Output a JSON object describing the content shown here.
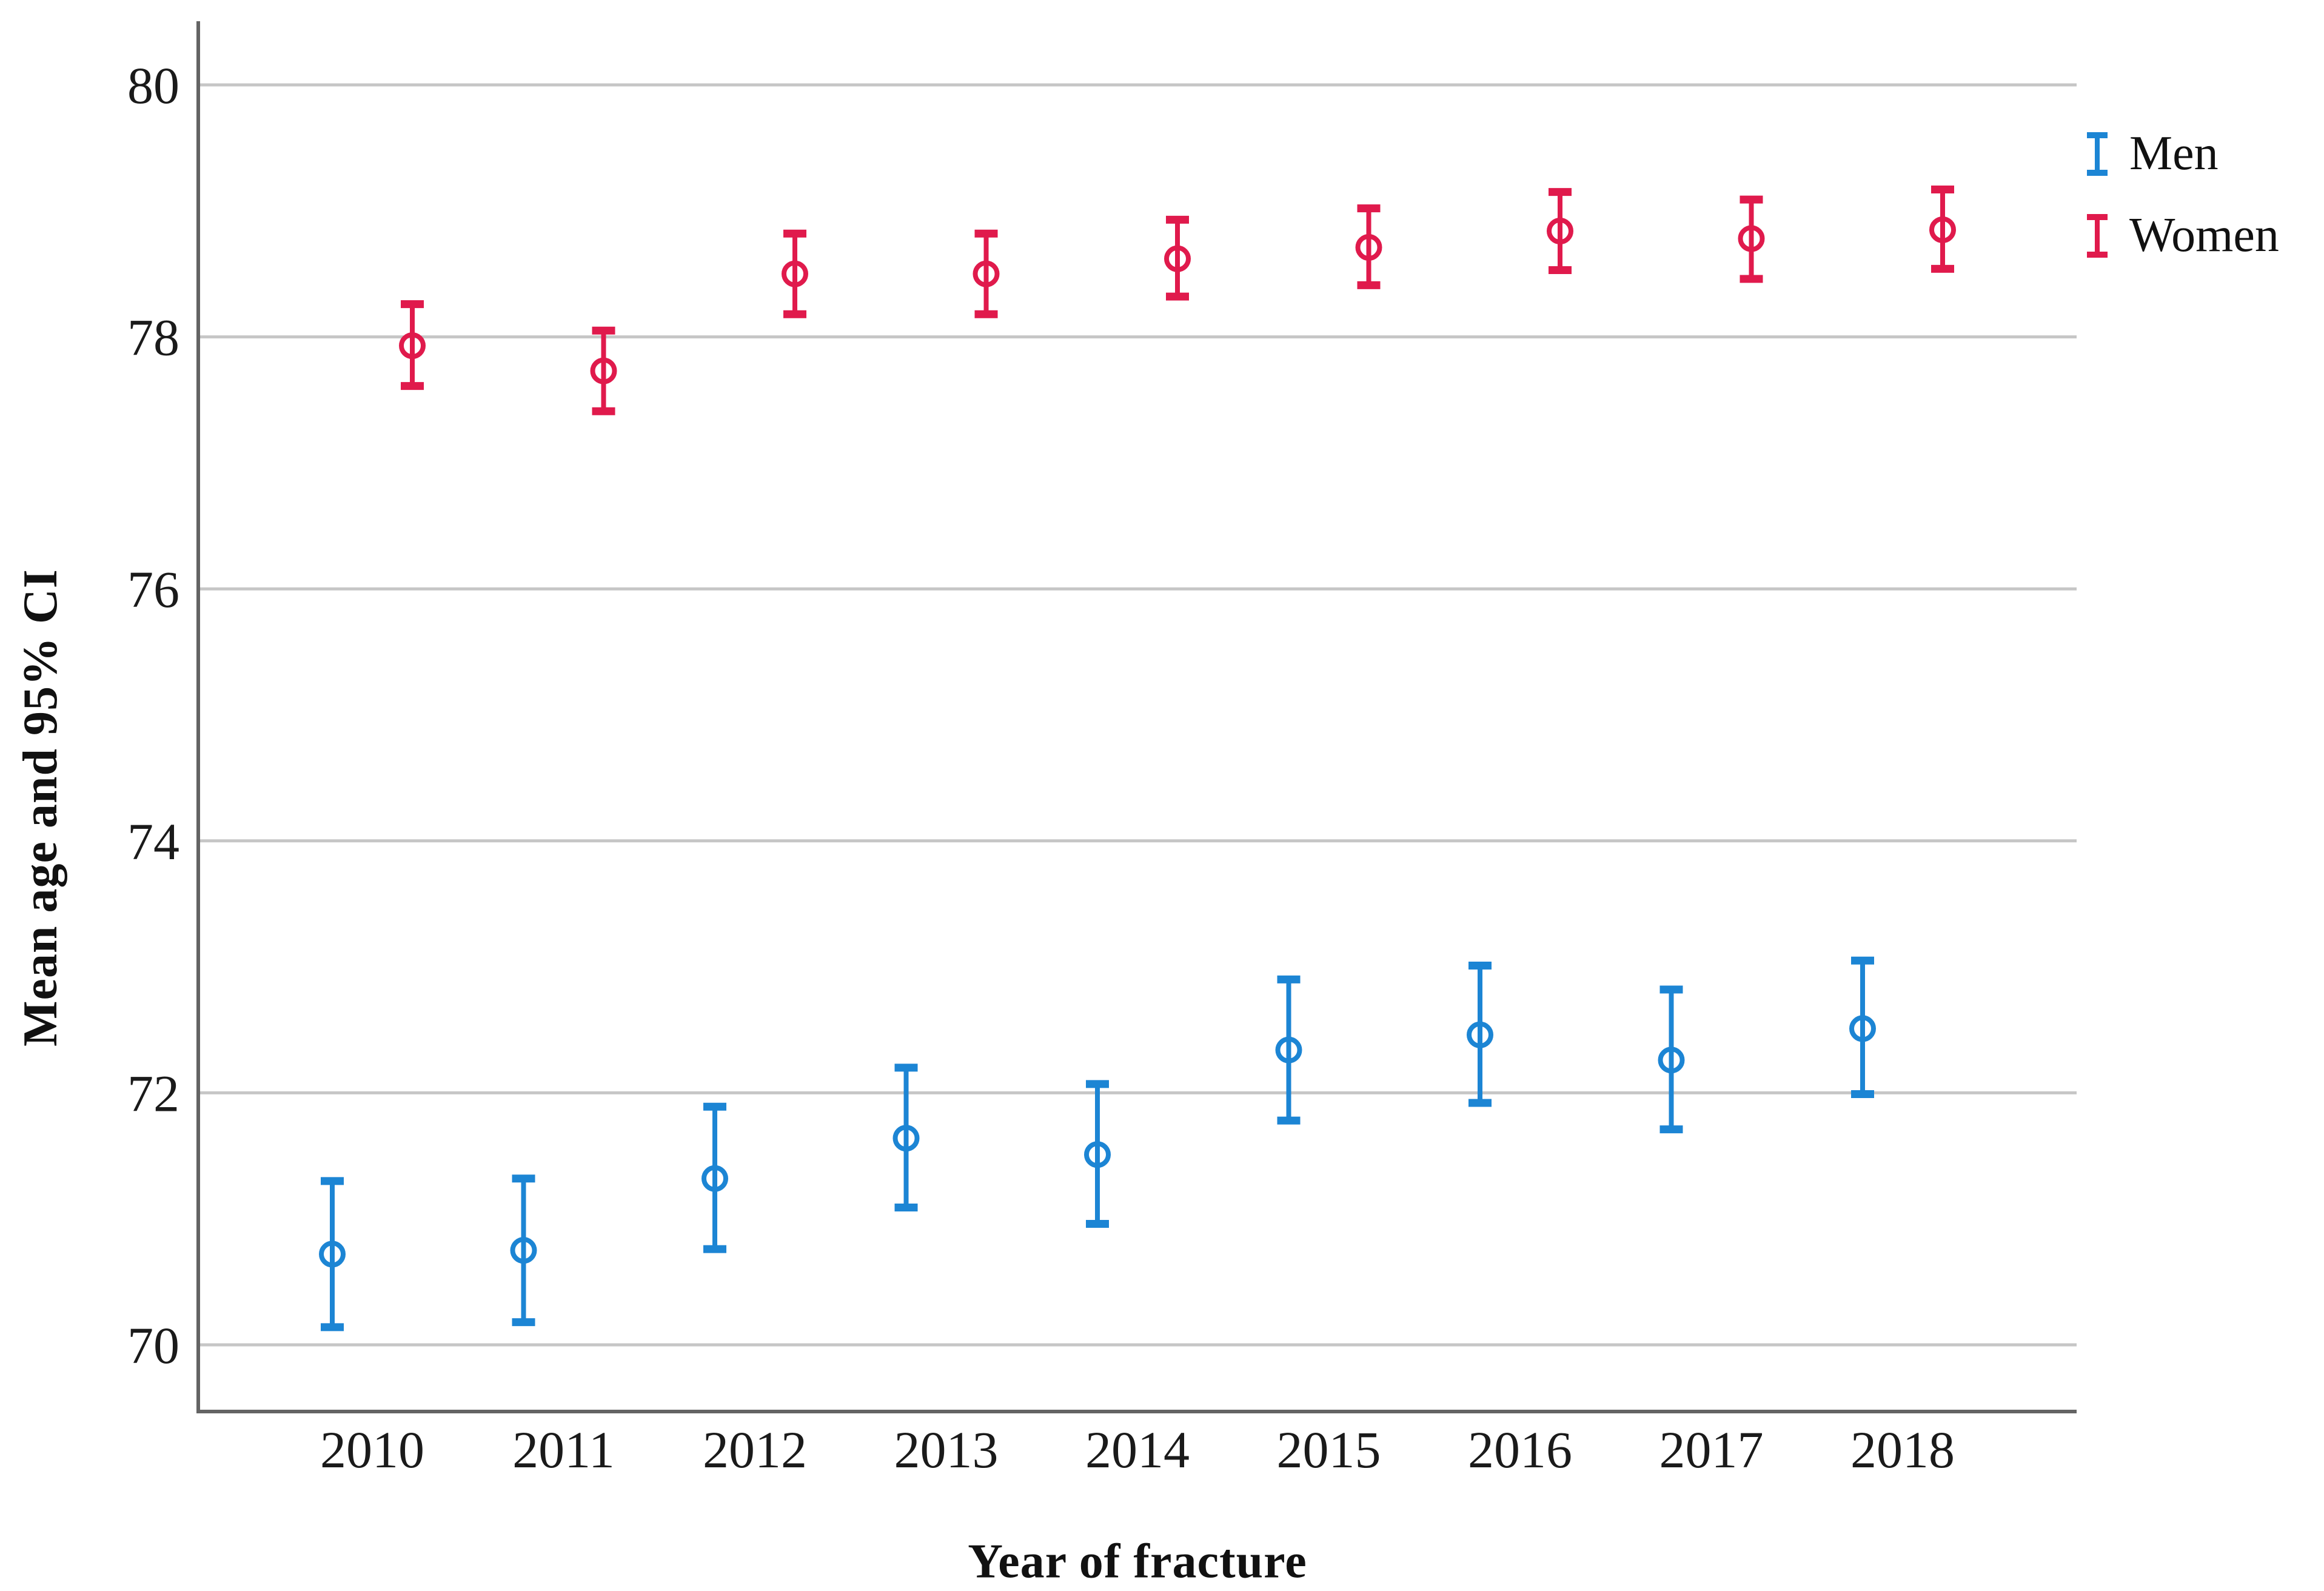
{
  "chart_data": {
    "type": "errorbar",
    "title": "",
    "xlabel": "Year of fracture",
    "ylabel": "Mean age and 95% CI",
    "categories": [
      "2010",
      "2011",
      "2012",
      "2013",
      "2014",
      "2015",
      "2016",
      "2017",
      "2018"
    ],
    "y_ticks": [
      80,
      78,
      76,
      74,
      72,
      70
    ],
    "ylim": [
      69.4,
      80.5
    ],
    "grid": "horizontal",
    "legend_position": "top-right",
    "series": [
      {
        "name": "Men",
        "color": "#1c85d4",
        "means": [
          70.72,
          70.75,
          71.32,
          71.64,
          71.51,
          72.34,
          72.46,
          72.26,
          72.51
        ],
        "ci_low": [
          70.14,
          70.18,
          70.76,
          71.09,
          70.96,
          71.78,
          71.92,
          71.71,
          71.99
        ],
        "ci_high": [
          71.3,
          71.32,
          71.89,
          72.2,
          72.07,
          72.9,
          73.01,
          72.82,
          73.05
        ]
      },
      {
        "name": "Women",
        "color": "#e01a4c",
        "means": [
          77.93,
          77.73,
          78.5,
          78.5,
          78.62,
          78.71,
          78.84,
          78.78,
          78.85
        ],
        "ci_low": [
          77.61,
          77.41,
          78.18,
          78.18,
          78.32,
          78.41,
          78.53,
          78.46,
          78.54
        ],
        "ci_high": [
          78.26,
          78.05,
          78.82,
          78.82,
          78.93,
          79.02,
          79.15,
          79.09,
          79.17
        ]
      }
    ]
  },
  "colors": {
    "axis": "#646464",
    "gridline": "#c6c6c6",
    "tick_text": "#1a1a1a"
  }
}
